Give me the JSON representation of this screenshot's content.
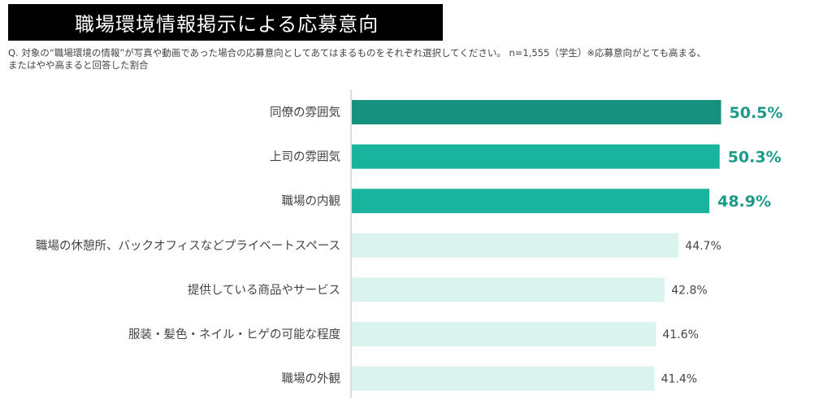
{
  "header": {
    "title": "職場環境情報掲示による応募意向",
    "question_line1": "Q. 対象の“職場環境の情報”が写真や動画であった場合の応募意向としてあてはまるものをそれぞれ選択してください。 n=1,555（学生）※応募意向がとても高まる、",
    "question_line2": "またはやや高まると回答した割合"
  },
  "chart_data": {
    "type": "bar",
    "orientation": "horizontal",
    "title": "職場環境情報掲示による応募意向",
    "categories": [
      "同僚の雰囲気",
      "上司の雰囲気",
      "職場の内観",
      "職場の休憩所、バックオフィスなどプライベートスペース",
      "提供している商品やサービス",
      "服装・髪色・ネイル・ヒゲの可能な程度",
      "職場の外観"
    ],
    "values": [
      50.5,
      50.3,
      48.9,
      44.7,
      42.8,
      41.6,
      41.4
    ],
    "value_labels": [
      "50.5%",
      "50.3%",
      "48.9%",
      "44.7%",
      "42.8%",
      "41.6%",
      "41.4%"
    ],
    "unit": "%",
    "highlight_top": 3,
    "xlim": [
      0,
      60
    ],
    "grid": false,
    "colors": {
      "top1": "#16917f",
      "top": "#1ab39d",
      "other": "#daf3ee",
      "highlight_label": "#1a9a87",
      "label": "#444444",
      "axis": "#bbbbbb"
    }
  }
}
